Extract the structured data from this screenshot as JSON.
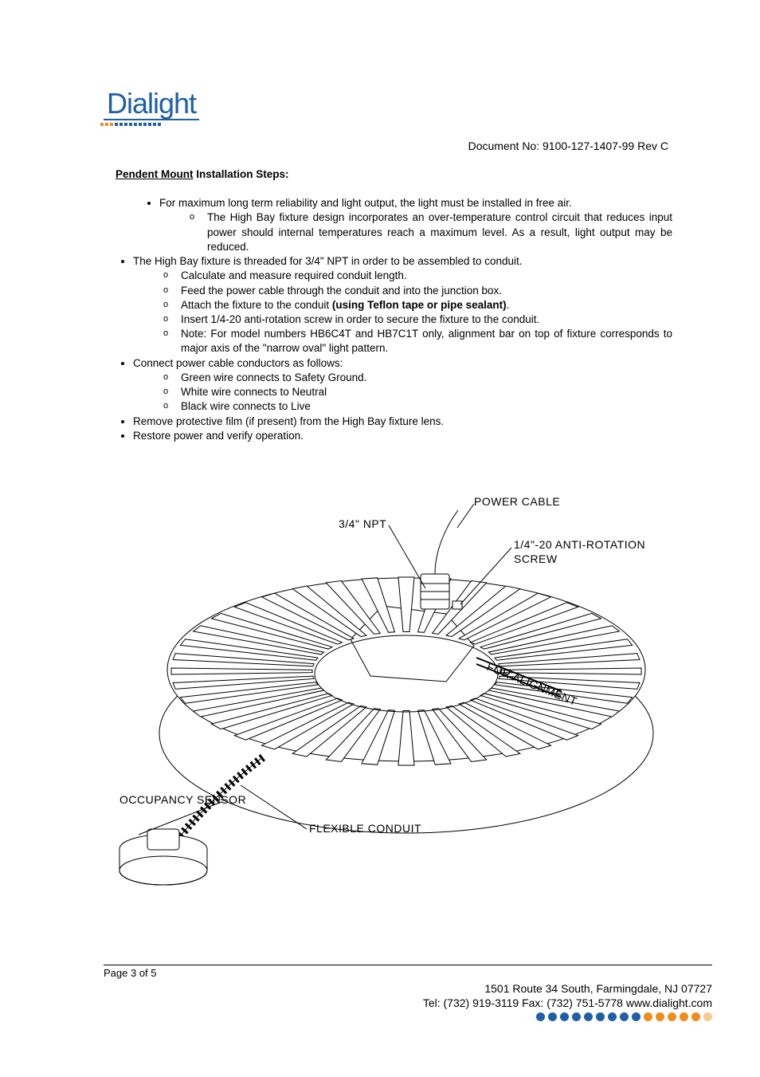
{
  "logo": {
    "text": "Dialight",
    "text_color": "#1f5fa8",
    "underline_color": "#1f5fa8",
    "dots": [
      "#f08c1e",
      "#f08c1e",
      "#f08c1e",
      "#1f5fa8",
      "#1f5fa8",
      "#1f5fa8",
      "#1f5fa8",
      "#1f5fa8",
      "#1f5fa8",
      "#1f5fa8",
      "#1f5fa8",
      "#1f5fa8",
      "#1f5fa8"
    ]
  },
  "doc_no": "Document No: 9100-127-1407-99 Rev C",
  "heading": {
    "underlined": "Pendent Mount",
    "rest": " Installation Steps:"
  },
  "bullets": {
    "b1": "For maximum long term reliability and light output, the light must be installed in free air.",
    "b1_sub1": "The High Bay fixture design incorporates an over-temperature control circuit that reduces input power should internal temperatures reach a maximum level. As a result, light output may be reduced.",
    "b2": "The High Bay fixture is threaded for 3/4\" NPT in order to be assembled to conduit.",
    "b2_sub1": "Calculate and measure required conduit length.",
    "b2_sub2": "Feed the power cable through the conduit and into the junction box.",
    "b2_sub3_pre": "Attach the fixture to the conduit ",
    "b2_sub3_bold": "(using Teflon tape or pipe sealant)",
    "b2_sub3_post": ".",
    "b2_sub4": "Insert 1/4-20 anti-rotation screw in order to secure the fixture to the conduit.",
    "b2_sub5": "Note: For model numbers HB6C4T and HB7C1T only, alignment bar on top of fixture corresponds to major axis of the \"narrow oval\" light pattern.",
    "b3": "Connect power cable conductors as follows:",
    "b3_sub1": "Green wire connects to Safety Ground.",
    "b3_sub2": "White wire connects to Neutral",
    "b3_sub3": "Black wire connects to Live",
    "b4": "Remove protective film (if present) from the High Bay fixture lens.",
    "b5": "Restore power and verify operation."
  },
  "diagram": {
    "labels": {
      "power_cable": "POWER CABLE",
      "npt": "3/4\"  NPT",
      "anti_rotation": "1/4\"-20 ANTI-ROTATION",
      "screw": "SCREW",
      "occupancy": "OCCUPANCY SENSOR",
      "flexible": "FLEXIBLE CONDUIT",
      "alignment": "FOR ALIGNMENT"
    },
    "stroke": "#000000",
    "fill": "#ffffff",
    "label_fontsize": 14
  },
  "footer": {
    "page": "Page 3 of 5",
    "addr": "1501 Route 34 South, Farmingdale, NJ  07727",
    "contact": "Tel:  (732) 919-3119  Fax:  (732) 751-5778  www.dialight.com",
    "dots": [
      "#1f5fa8",
      "#1f5fa8",
      "#1f5fa8",
      "#1f5fa8",
      "#1f5fa8",
      "#1f5fa8",
      "#1f5fa8",
      "#1f5fa8",
      "#1f5fa8",
      "#f08c1e",
      "#f08c1e",
      "#f08c1e",
      "#f08c1e",
      "#f08c1e",
      "#f8c98a"
    ]
  }
}
